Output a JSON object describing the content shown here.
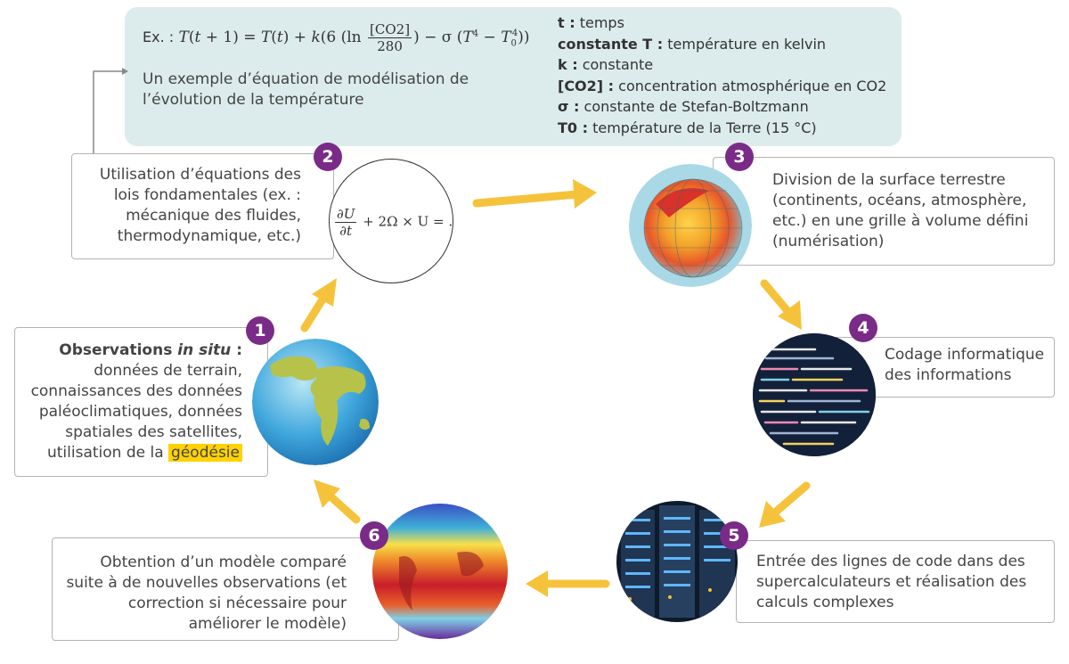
{
  "equation_box": {
    "eq_prefix": "Ex. :",
    "eq_fraction_num": "[CO2]",
    "eq_fraction_den": "280",
    "caption": "Un exemple d’équation de modélisation de l’évolution de la température",
    "legend": [
      {
        "term": "t :",
        "desc": " temps"
      },
      {
        "term": "constante T :",
        "desc": " température en kelvin"
      },
      {
        "term": "k :",
        "desc": " constante"
      },
      {
        "term": "[CO2] :",
        "desc": " concentration atmosphérique en CO2"
      },
      {
        "term": "σ :",
        "desc": " constante de Stefan-Boltzmann"
      },
      {
        "term": "T0 :",
        "desc": " température de la Terre (15 °C)"
      }
    ]
  },
  "steps": {
    "s1": {
      "number": "1",
      "title_bold": "Observations ",
      "title_italic": "in situ",
      "title_colon": " :",
      "text": "données de terrain, connaissances des données paléoclimatiques, données spatiales des satellites, utilisation de la",
      "highlight": "géodésie"
    },
    "s2": {
      "number": "2",
      "text": "Utilisation d’équations des lois fondamentales (ex. : mécanique des fluides, thermodynamique, etc.)",
      "formula_num": "∂U",
      "formula_den": "∂t",
      "formula_rest": "+ 2Ω × U = ."
    },
    "s3": {
      "number": "3",
      "text": "Division de la surface terrestre (continents, océans, atmosphère, etc.) en une grille à volume défini (numérisation)"
    },
    "s4": {
      "number": "4",
      "text": "Codage informatique des informations"
    },
    "s5": {
      "number": "5",
      "text": "Entrée des lignes de code dans des supercalculateurs et réalisation des calculs complexes"
    },
    "s6": {
      "number": "6",
      "text": "Obtention d’un modèle comparé suite à de nouvelles observations (et correction si nécessaire pour améliorer le modèle)"
    }
  },
  "colors": {
    "accent": "#7a2b87",
    "arrow": "#f5c33b",
    "highlight": "#ffd200",
    "panel": "#dcecec"
  }
}
